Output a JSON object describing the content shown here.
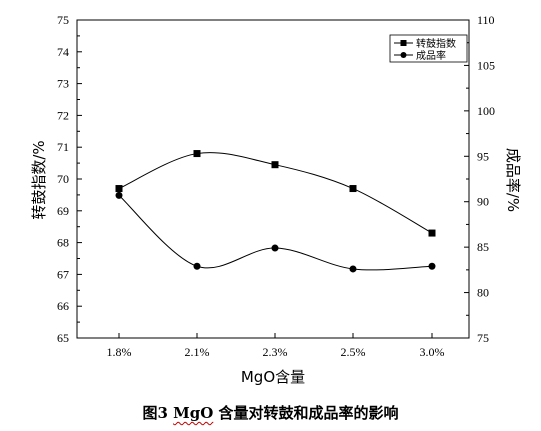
{
  "chart_data": {
    "type": "line",
    "categories": [
      "1.8%",
      "2.1%",
      "2.3%",
      "2.5%",
      "3.0%"
    ],
    "xlabel": "MgO含量",
    "ylabel_left": "转鼓指数/%",
    "ylabel_right": "成品率/%",
    "ylim_left": [
      65,
      75
    ],
    "ylim_right": [
      75,
      110
    ],
    "yticks_left": [
      "65",
      "66",
      "67",
      "68",
      "69",
      "70",
      "71",
      "72",
      "73",
      "74",
      "75"
    ],
    "yticks_right": [
      "75",
      "80",
      "85",
      "90",
      "95",
      "100",
      "105",
      "110"
    ],
    "grid": false,
    "legend_position": "top-right",
    "series": [
      {
        "name": "转鼓指数",
        "axis": "left",
        "marker": "square",
        "values": [
          69.7,
          70.8,
          70.45,
          69.7,
          68.3
        ]
      },
      {
        "name": "成品率",
        "axis": "right",
        "marker": "circle",
        "values": [
          90.7,
          82.9,
          84.9,
          82.6,
          82.9
        ]
      }
    ]
  },
  "caption": {
    "prefix": "图3   ",
    "mgo": "MgO",
    "rest": " 含量对转鼓和成品率的影响"
  }
}
